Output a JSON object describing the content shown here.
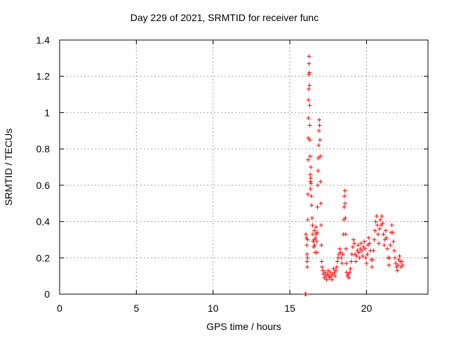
{
  "chart_data": {
    "type": "scatter",
    "title": "Day 229 of 2021, SRMTID for receiver func",
    "xlabel": "GPS time / hours",
    "ylabel": "SRMTID / TECUs",
    "xlim": [
      0,
      24
    ],
    "ylim": [
      0,
      1.4
    ],
    "xticks": [
      0,
      5,
      10,
      15,
      20
    ],
    "yticks": [
      0,
      0.2,
      0.4,
      0.6,
      0.8,
      1,
      1.2,
      1.4
    ],
    "xtick_labels": [
      "0",
      "5",
      "10",
      "15",
      "20"
    ],
    "ytick_labels": [
      "0",
      "0.2",
      "0.4",
      "0.6",
      "0.8",
      "1",
      "1.2",
      "1.4"
    ],
    "grid": true,
    "marker": "+",
    "color": "#ff0000",
    "series": [
      {
        "name": "SRMTID",
        "points": [
          [
            16.0,
            0.0
          ],
          [
            16.02,
            0.0
          ],
          [
            16.05,
            0.0
          ],
          [
            16.05,
            0.33
          ],
          [
            16.08,
            0.31
          ],
          [
            16.1,
            0.27
          ],
          [
            16.12,
            0.22
          ],
          [
            16.13,
            0.18
          ],
          [
            16.14,
            0.15
          ],
          [
            16.15,
            0.2
          ],
          [
            16.16,
            0.3
          ],
          [
            16.17,
            0.41
          ],
          [
            16.18,
            0.55
          ],
          [
            16.19,
            0.74
          ],
          [
            16.2,
            0.86
          ],
          [
            16.21,
            0.97
          ],
          [
            16.22,
            1.07
          ],
          [
            16.23,
            1.13
          ],
          [
            16.24,
            1.21
          ],
          [
            16.25,
            1.27
          ],
          [
            16.26,
            1.31
          ],
          [
            16.27,
            1.22
          ],
          [
            16.28,
            1.15
          ],
          [
            16.29,
            1.04
          ],
          [
            16.3,
            0.93
          ],
          [
            16.31,
            0.85
          ],
          [
            16.32,
            0.76
          ],
          [
            16.33,
            0.66
          ],
          [
            16.34,
            0.62
          ],
          [
            16.35,
            0.58
          ],
          [
            16.36,
            0.64
          ],
          [
            16.37,
            0.7
          ],
          [
            16.38,
            0.61
          ],
          [
            16.4,
            0.54
          ],
          [
            16.42,
            0.49
          ],
          [
            16.45,
            0.42
          ],
          [
            16.48,
            0.38
          ],
          [
            16.5,
            0.33
          ],
          [
            16.52,
            0.29
          ],
          [
            16.55,
            0.26
          ],
          [
            16.58,
            0.3
          ],
          [
            16.6,
            0.35
          ],
          [
            16.62,
            0.27
          ],
          [
            16.65,
            0.23
          ],
          [
            16.68,
            0.31
          ],
          [
            16.7,
            0.37
          ],
          [
            16.72,
            0.33
          ],
          [
            16.74,
            0.29
          ],
          [
            16.76,
            0.23
          ],
          [
            16.78,
            0.34
          ],
          [
            16.8,
            0.48
          ],
          [
            16.82,
            0.6
          ],
          [
            16.84,
            0.68
          ],
          [
            16.86,
            0.75
          ],
          [
            16.88,
            0.82
          ],
          [
            16.9,
            0.9
          ],
          [
            16.92,
            0.96
          ],
          [
            16.94,
            0.93
          ],
          [
            16.96,
            0.85
          ],
          [
            16.98,
            0.76
          ],
          [
            17.0,
            0.62
          ],
          [
            17.02,
            0.5
          ],
          [
            17.04,
            0.38
          ],
          [
            17.06,
            0.27
          ],
          [
            17.08,
            0.18
          ],
          [
            17.1,
            0.15
          ],
          [
            17.15,
            0.13
          ],
          [
            17.2,
            0.11
          ],
          [
            17.25,
            0.09
          ],
          [
            17.3,
            0.12
          ],
          [
            17.35,
            0.1
          ],
          [
            17.4,
            0.08
          ],
          [
            17.45,
            0.11
          ],
          [
            17.5,
            0.13
          ],
          [
            17.55,
            0.1
          ],
          [
            17.6,
            0.09
          ],
          [
            17.65,
            0.12
          ],
          [
            17.7,
            0.1
          ],
          [
            17.75,
            0.08
          ],
          [
            17.8,
            0.11
          ],
          [
            17.85,
            0.14
          ],
          [
            17.9,
            0.12
          ],
          [
            17.95,
            0.1
          ],
          [
            18.0,
            0.13
          ],
          [
            18.05,
            0.15
          ],
          [
            18.1,
            0.18
          ],
          [
            18.15,
            0.2
          ],
          [
            18.2,
            0.22
          ],
          [
            18.25,
            0.25
          ],
          [
            18.3,
            0.23
          ],
          [
            18.35,
            0.2
          ],
          [
            18.4,
            0.17
          ],
          [
            18.45,
            0.22
          ],
          [
            18.5,
            0.33
          ],
          [
            18.52,
            0.41
          ],
          [
            18.54,
            0.48
          ],
          [
            18.56,
            0.54
          ],
          [
            18.58,
            0.57
          ],
          [
            18.6,
            0.5
          ],
          [
            18.62,
            0.42
          ],
          [
            18.64,
            0.33
          ],
          [
            18.66,
            0.25
          ],
          [
            18.68,
            0.17
          ],
          [
            18.7,
            0.12
          ],
          [
            18.75,
            0.1
          ],
          [
            18.8,
            0.11
          ],
          [
            18.85,
            0.09
          ],
          [
            18.9,
            0.12
          ],
          [
            18.95,
            0.14
          ],
          [
            19.0,
            0.18
          ],
          [
            19.05,
            0.22
          ],
          [
            19.1,
            0.26
          ],
          [
            19.15,
            0.3
          ],
          [
            19.2,
            0.28
          ],
          [
            19.25,
            0.22
          ],
          [
            19.3,
            0.18
          ],
          [
            19.35,
            0.21
          ],
          [
            19.4,
            0.24
          ],
          [
            19.45,
            0.27
          ],
          [
            19.5,
            0.23
          ],
          [
            19.55,
            0.2
          ],
          [
            19.6,
            0.25
          ],
          [
            19.65,
            0.28
          ],
          [
            19.7,
            0.24
          ],
          [
            19.75,
            0.21
          ],
          [
            19.8,
            0.26
          ],
          [
            19.85,
            0.29
          ],
          [
            19.9,
            0.25
          ],
          [
            19.95,
            0.2
          ],
          [
            20.0,
            0.17
          ],
          [
            20.05,
            0.22
          ],
          [
            20.1,
            0.27
          ],
          [
            20.15,
            0.31
          ],
          [
            20.2,
            0.28
          ],
          [
            20.25,
            0.24
          ],
          [
            20.3,
            0.19
          ],
          [
            20.35,
            0.15
          ],
          [
            20.4,
            0.19
          ],
          [
            20.45,
            0.24
          ],
          [
            20.5,
            0.3
          ],
          [
            20.55,
            0.35
          ],
          [
            20.6,
            0.4
          ],
          [
            20.65,
            0.43
          ],
          [
            20.7,
            0.38
          ],
          [
            20.75,
            0.33
          ],
          [
            20.8,
            0.28
          ],
          [
            20.85,
            0.36
          ],
          [
            20.9,
            0.41
          ],
          [
            20.95,
            0.38
          ],
          [
            21.0,
            0.43
          ],
          [
            21.05,
            0.39
          ],
          [
            21.1,
            0.33
          ],
          [
            21.15,
            0.27
          ],
          [
            21.2,
            0.3
          ],
          [
            21.25,
            0.35
          ],
          [
            21.3,
            0.31
          ],
          [
            21.35,
            0.25
          ],
          [
            21.4,
            0.2
          ],
          [
            21.45,
            0.16
          ],
          [
            21.5,
            0.2
          ],
          [
            21.55,
            0.27
          ],
          [
            21.6,
            0.34
          ],
          [
            21.65,
            0.38
          ],
          [
            21.7,
            0.34
          ],
          [
            21.75,
            0.29
          ],
          [
            21.8,
            0.24
          ],
          [
            21.85,
            0.2
          ],
          [
            21.9,
            0.17
          ],
          [
            21.95,
            0.15
          ],
          [
            22.0,
            0.13
          ],
          [
            22.05,
            0.16
          ],
          [
            22.1,
            0.19
          ],
          [
            22.15,
            0.21
          ],
          [
            22.2,
            0.18
          ],
          [
            22.25,
            0.15
          ],
          [
            22.3,
            0.18
          ],
          [
            22.35,
            0.16
          ]
        ]
      }
    ]
  }
}
